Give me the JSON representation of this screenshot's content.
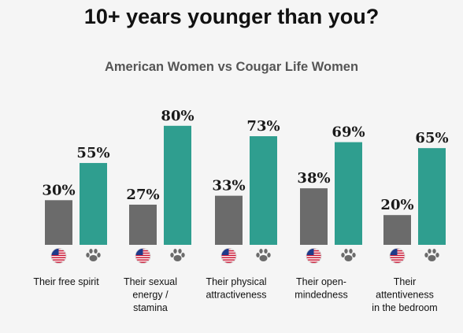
{
  "header": {
    "title": "10+ years younger than you?",
    "subtitle": "American Women vs Cougar Life Women"
  },
  "chart_data": {
    "type": "bar",
    "title": "10+ years younger than you?",
    "subtitle": "American Women vs Cougar Life Women",
    "categories": [
      "Their free spirit",
      "Their sexual energy / stamina",
      "Their physical attractiveness",
      "Their open-mindedness",
      "Their attentiveness in the bedroom"
    ],
    "category_lines": [
      [
        "Their free spirit"
      ],
      [
        "Their sexual",
        "energy /",
        "stamina"
      ],
      [
        "Their physical",
        "attractiveness"
      ],
      [
        "Their open-",
        "mindedness"
      ],
      [
        "Their",
        "attentiveness",
        "in the bedroom"
      ]
    ],
    "series": [
      {
        "icon": "us-flag-icon",
        "color": "#6b6b6b",
        "values": [
          30,
          27,
          33,
          38,
          20
        ],
        "labels": [
          "30%",
          "27%",
          "33%",
          "38%",
          "20%"
        ]
      },
      {
        "icon": "paw-icon",
        "color": "#2f9e8f",
        "values": [
          55,
          80,
          73,
          69,
          65
        ],
        "labels": [
          "55%",
          "80%",
          "73%",
          "69%",
          "65%"
        ]
      }
    ],
    "ylim": [
      0,
      100
    ],
    "grid": false,
    "legend": "none",
    "value_suffix": "%"
  }
}
